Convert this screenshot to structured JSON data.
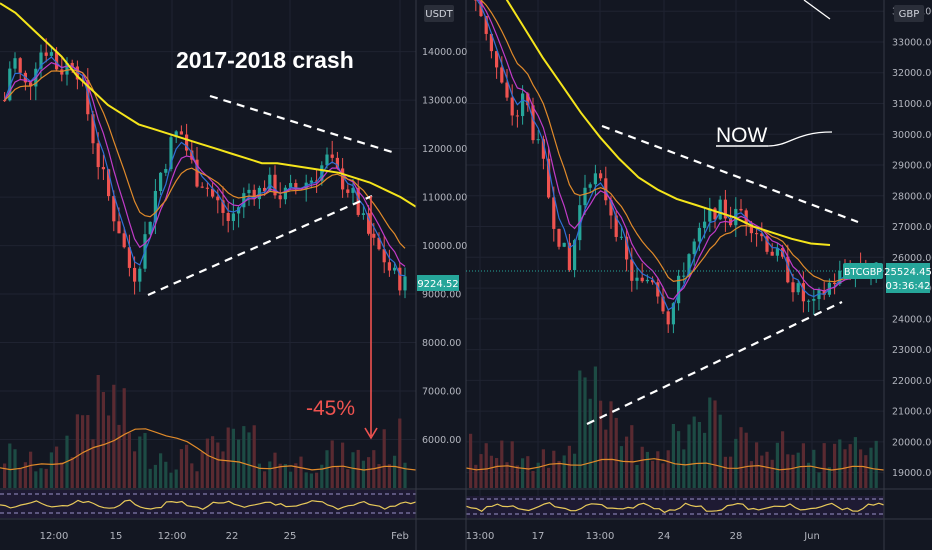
{
  "chart_data": [
    {
      "type": "candlestick",
      "title": "2017-2018 crash",
      "annotation_drop": "-45%",
      "currency_label": "USDT",
      "last_price": "9224.52",
      "y_ticks": [
        "6000.00",
        "7000.00",
        "8000.00",
        "9000.00",
        "10000.00",
        "11000.00",
        "12000.00",
        "13000.00",
        "14000.00"
      ],
      "ylim": [
        5000,
        14900
      ],
      "x_ticks": [
        "12:00",
        "15",
        "12:00",
        "22",
        "25",
        "Feb"
      ],
      "close_series": [
        13000,
        14000,
        13500,
        13200,
        13800,
        14100,
        14000,
        13600,
        13700,
        13900,
        13300,
        12600,
        11800,
        11300,
        10700,
        10300,
        9600,
        9400,
        10000,
        10700,
        11400,
        11800,
        12300,
        12300,
        11800,
        11400,
        11300,
        11000,
        10800,
        10500,
        10700,
        11000,
        11200,
        11100,
        11300,
        11200,
        11000,
        11100,
        11200,
        11300,
        11400,
        11600,
        11800,
        11500,
        11300,
        11100,
        10700,
        10300,
        10000,
        9800,
        9500,
        9300,
        9224.52
      ],
      "ma_yellow": [
        15000,
        14800,
        14500,
        14200,
        13900,
        13500,
        13200,
        12900,
        12700,
        12500,
        12400,
        12300,
        12200,
        12100,
        12000,
        11900,
        11800,
        11700,
        11700,
        11650,
        11600,
        11550,
        11500,
        11400,
        11300,
        11150,
        11000,
        10800
      ],
      "volume_levels": [
        0.35,
        0.25,
        0.3,
        0.8,
        0.9,
        0.45,
        0.35,
        0.3,
        0.4,
        0.5,
        0.3,
        0.25,
        0.35,
        0.3,
        0.4,
        0.5
      ]
    },
    {
      "type": "candlestick",
      "annotation_now": "NOW",
      "currency_label": "GBP",
      "symbol": "BTCGBP",
      "last_price": "25524.45",
      "countdown": "03:36:42",
      "y_ticks": [
        "19000.00",
        "20000.00",
        "21000.00",
        "22000.00",
        "23000.00",
        "24000.00",
        "25000.00",
        "26000.00",
        "27000.00",
        "28000.00",
        "29000.00",
        "30000.00",
        "31000.00",
        "32000.00",
        "33000.00",
        "34000.00"
      ],
      "ylim": [
        18500,
        34300
      ],
      "x_ticks": [
        "13:00",
        "17",
        "13:00",
        "24",
        "28",
        "Jun"
      ],
      "close_series": [
        34500,
        34000,
        33200,
        32000,
        31000,
        30500,
        31300,
        30000,
        29000,
        27500,
        26500,
        25500,
        27500,
        28800,
        28500,
        28000,
        27200,
        26000,
        25300,
        25000,
        25500,
        24800,
        24000,
        25000,
        26000,
        26500,
        27000,
        27600,
        27500,
        27200,
        27500,
        27200,
        26800,
        26400,
        26000,
        25600,
        25000,
        24600,
        24300,
        24800,
        25200,
        25400,
        25600,
        25800,
        25700,
        25524.45
      ],
      "ma_yellow": [
        36500,
        35500,
        34500,
        33500,
        32500,
        31600,
        30700,
        29900,
        29200,
        28600,
        28200,
        27900,
        27700,
        27500,
        27300,
        27000,
        26800,
        26600,
        26450,
        26400
      ],
      "volume_levels": [
        0.4,
        0.3,
        0.35,
        0.3,
        0.9,
        0.5,
        0.4,
        0.45,
        0.6,
        0.5,
        0.4,
        0.35,
        0.3,
        0.35,
        0.3
      ]
    }
  ]
}
